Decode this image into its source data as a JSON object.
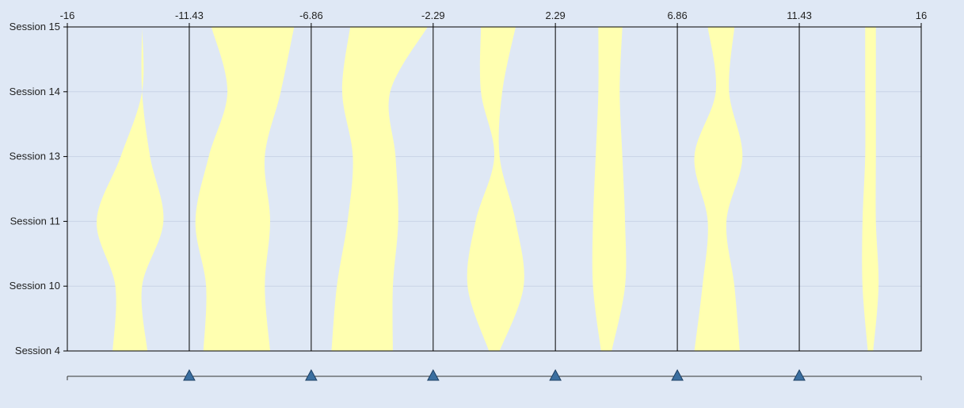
{
  "chart_data": {
    "type": "area",
    "x_ticks": [
      "-16",
      "-11.43",
      "-6.86",
      "-2.29",
      "2.29",
      "6.86",
      "11.43",
      "16"
    ],
    "xlim": [
      -16,
      16
    ],
    "y_categories": [
      "Session 4",
      "Session 10",
      "Session 11",
      "Session 13",
      "Session 14",
      "Session 15"
    ],
    "grid": true,
    "colors": {
      "background": "#dfe8f5",
      "band": "#ffffb0",
      "grid": "#c9d4e6",
      "handle": "#3b6fa0"
    },
    "bands": [
      {
        "left": [
          -14.3,
          -14.2,
          -14.9,
          -14.0,
          -13.2,
          -13.2
        ],
        "right": [
          -13.0,
          -13.2,
          -12.4,
          -12.9,
          -13.2,
          -13.2
        ]
      },
      {
        "left": [
          -10.9,
          -10.8,
          -11.2,
          -10.7,
          -10.0,
          -10.6
        ],
        "right": [
          -8.4,
          -8.6,
          -8.4,
          -8.6,
          -8.0,
          -7.5
        ]
      },
      {
        "left": [
          -6.1,
          -5.9,
          -5.5,
          -5.3,
          -5.7,
          -5.4
        ],
        "right": [
          -3.8,
          -3.8,
          -3.6,
          -3.7,
          -3.9,
          -2.5
        ]
      },
      {
        "left": [
          -0.2,
          -1.0,
          -0.7,
          0.0,
          -0.5,
          -0.5
        ],
        "right": [
          0.2,
          1.1,
          0.8,
          0.2,
          0.3,
          0.8
        ]
      },
      {
        "left": [
          4.0,
          3.7,
          3.7,
          3.8,
          3.9,
          3.9
        ],
        "right": [
          4.4,
          4.9,
          4.9,
          4.8,
          4.7,
          4.8
        ]
      },
      {
        "left": [
          7.5,
          7.8,
          8.0,
          7.5,
          8.3,
          8.0
        ],
        "right": [
          9.2,
          9.0,
          8.7,
          9.3,
          8.8,
          9.0
        ]
      },
      {
        "left": [
          14.0,
          13.8,
          13.8,
          13.9,
          13.9,
          13.9
        ],
        "right": [
          14.2,
          14.4,
          14.3,
          14.3,
          14.3,
          14.3
        ]
      }
    ],
    "slider_handles": [
      -11.43,
      -6.86,
      -2.29,
      2.29,
      6.86,
      11.43
    ]
  }
}
